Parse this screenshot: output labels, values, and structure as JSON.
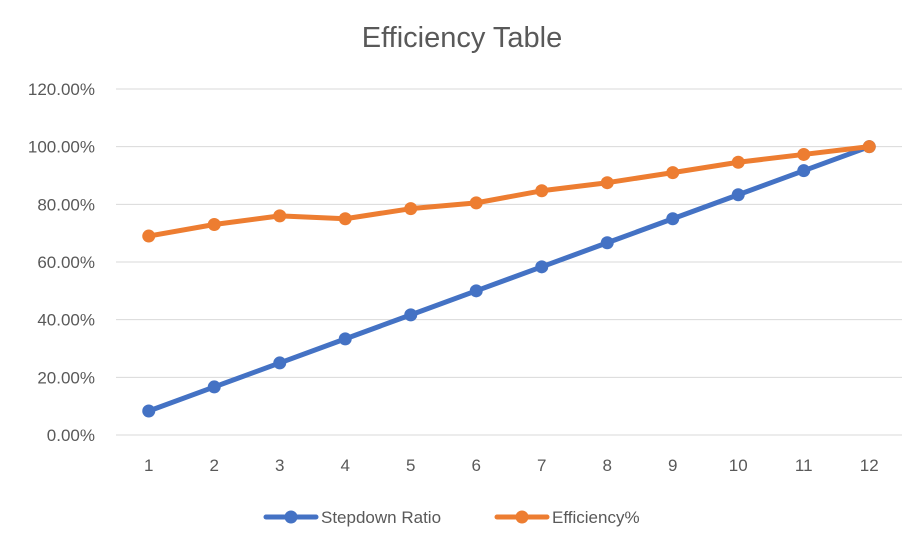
{
  "chart_data": {
    "type": "line",
    "title": "Efficiency Table",
    "xlabel": "",
    "ylabel": "",
    "categories": [
      "1",
      "2",
      "3",
      "4",
      "5",
      "6",
      "7",
      "8",
      "9",
      "10",
      "11",
      "12"
    ],
    "y_ticks": [
      "0.00%",
      "20.00%",
      "40.00%",
      "60.00%",
      "80.00%",
      "100.00%",
      "120.00%"
    ],
    "ylim": [
      0,
      1.2
    ],
    "grid": true,
    "legend_position": "bottom",
    "series": [
      {
        "name": "Stepdown Ratio",
        "color": "#4472c4",
        "values": [
          0.0833,
          0.1667,
          0.25,
          0.3333,
          0.4167,
          0.5,
          0.5833,
          0.6667,
          0.75,
          0.8333,
          0.9167,
          1.0
        ]
      },
      {
        "name": "Efficiency%",
        "color": "#ed7d31",
        "values": [
          0.69,
          0.73,
          0.76,
          0.75,
          0.785,
          0.805,
          0.847,
          0.875,
          0.91,
          0.946,
          0.973,
          1.0
        ]
      }
    ]
  }
}
